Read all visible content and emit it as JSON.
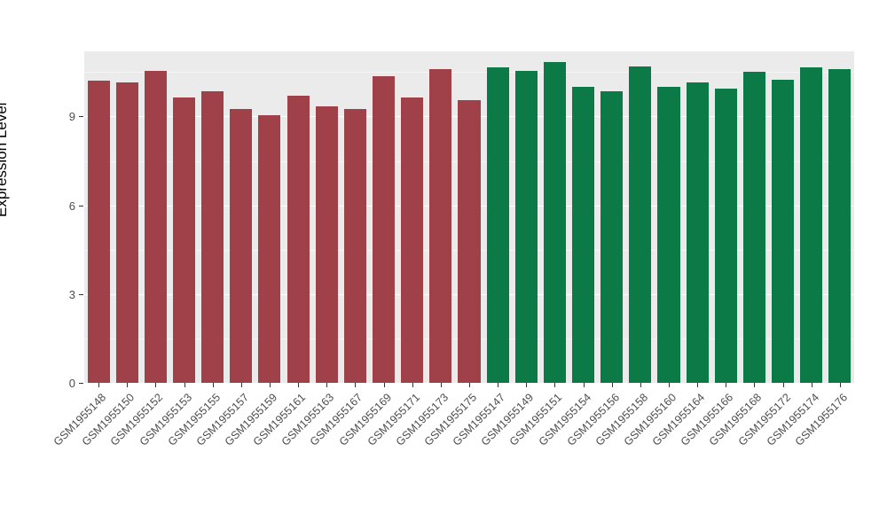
{
  "chart_data": {
    "type": "bar",
    "title": "",
    "xlabel": "",
    "ylabel": "Expression Level",
    "yticks": [
      0,
      3,
      6,
      9
    ],
    "ylim": [
      0,
      11.2
    ],
    "grid": "on",
    "legend": "none",
    "group_colors": {
      "group1": "#A04049",
      "group2": "#0B7A47"
    },
    "panel_background": "#EBEBEB",
    "gridline_color": "#FFFFFF",
    "categories": [
      "GSM1955148",
      "GSM1955150",
      "GSM1955152",
      "GSM1955153",
      "GSM1955155",
      "GSM1955157",
      "GSM1955159",
      "GSM1955161",
      "GSM1955163",
      "GSM1955167",
      "GSM1955169",
      "GSM1955171",
      "GSM1955173",
      "GSM1955175",
      "GSM1955147",
      "GSM1955149",
      "GSM1955151",
      "GSM1955154",
      "GSM1955156",
      "GSM1955158",
      "GSM1955160",
      "GSM1955164",
      "GSM1955166",
      "GSM1955168",
      "GSM1955172",
      "GSM1955174",
      "GSM1955176"
    ],
    "values": [
      10.2,
      10.15,
      10.55,
      9.65,
      9.85,
      9.25,
      9.05,
      9.7,
      9.35,
      9.25,
      10.35,
      9.65,
      10.6,
      9.55,
      10.65,
      10.55,
      10.85,
      10.0,
      9.85,
      10.7,
      10.0,
      10.15,
      9.95,
      10.5,
      10.25,
      10.65,
      10.6
    ],
    "groups": [
      "group1",
      "group1",
      "group1",
      "group1",
      "group1",
      "group1",
      "group1",
      "group1",
      "group1",
      "group1",
      "group1",
      "group1",
      "group1",
      "group1",
      "group2",
      "group2",
      "group2",
      "group2",
      "group2",
      "group2",
      "group2",
      "group2",
      "group2",
      "group2",
      "group2",
      "group2",
      "group2"
    ]
  }
}
